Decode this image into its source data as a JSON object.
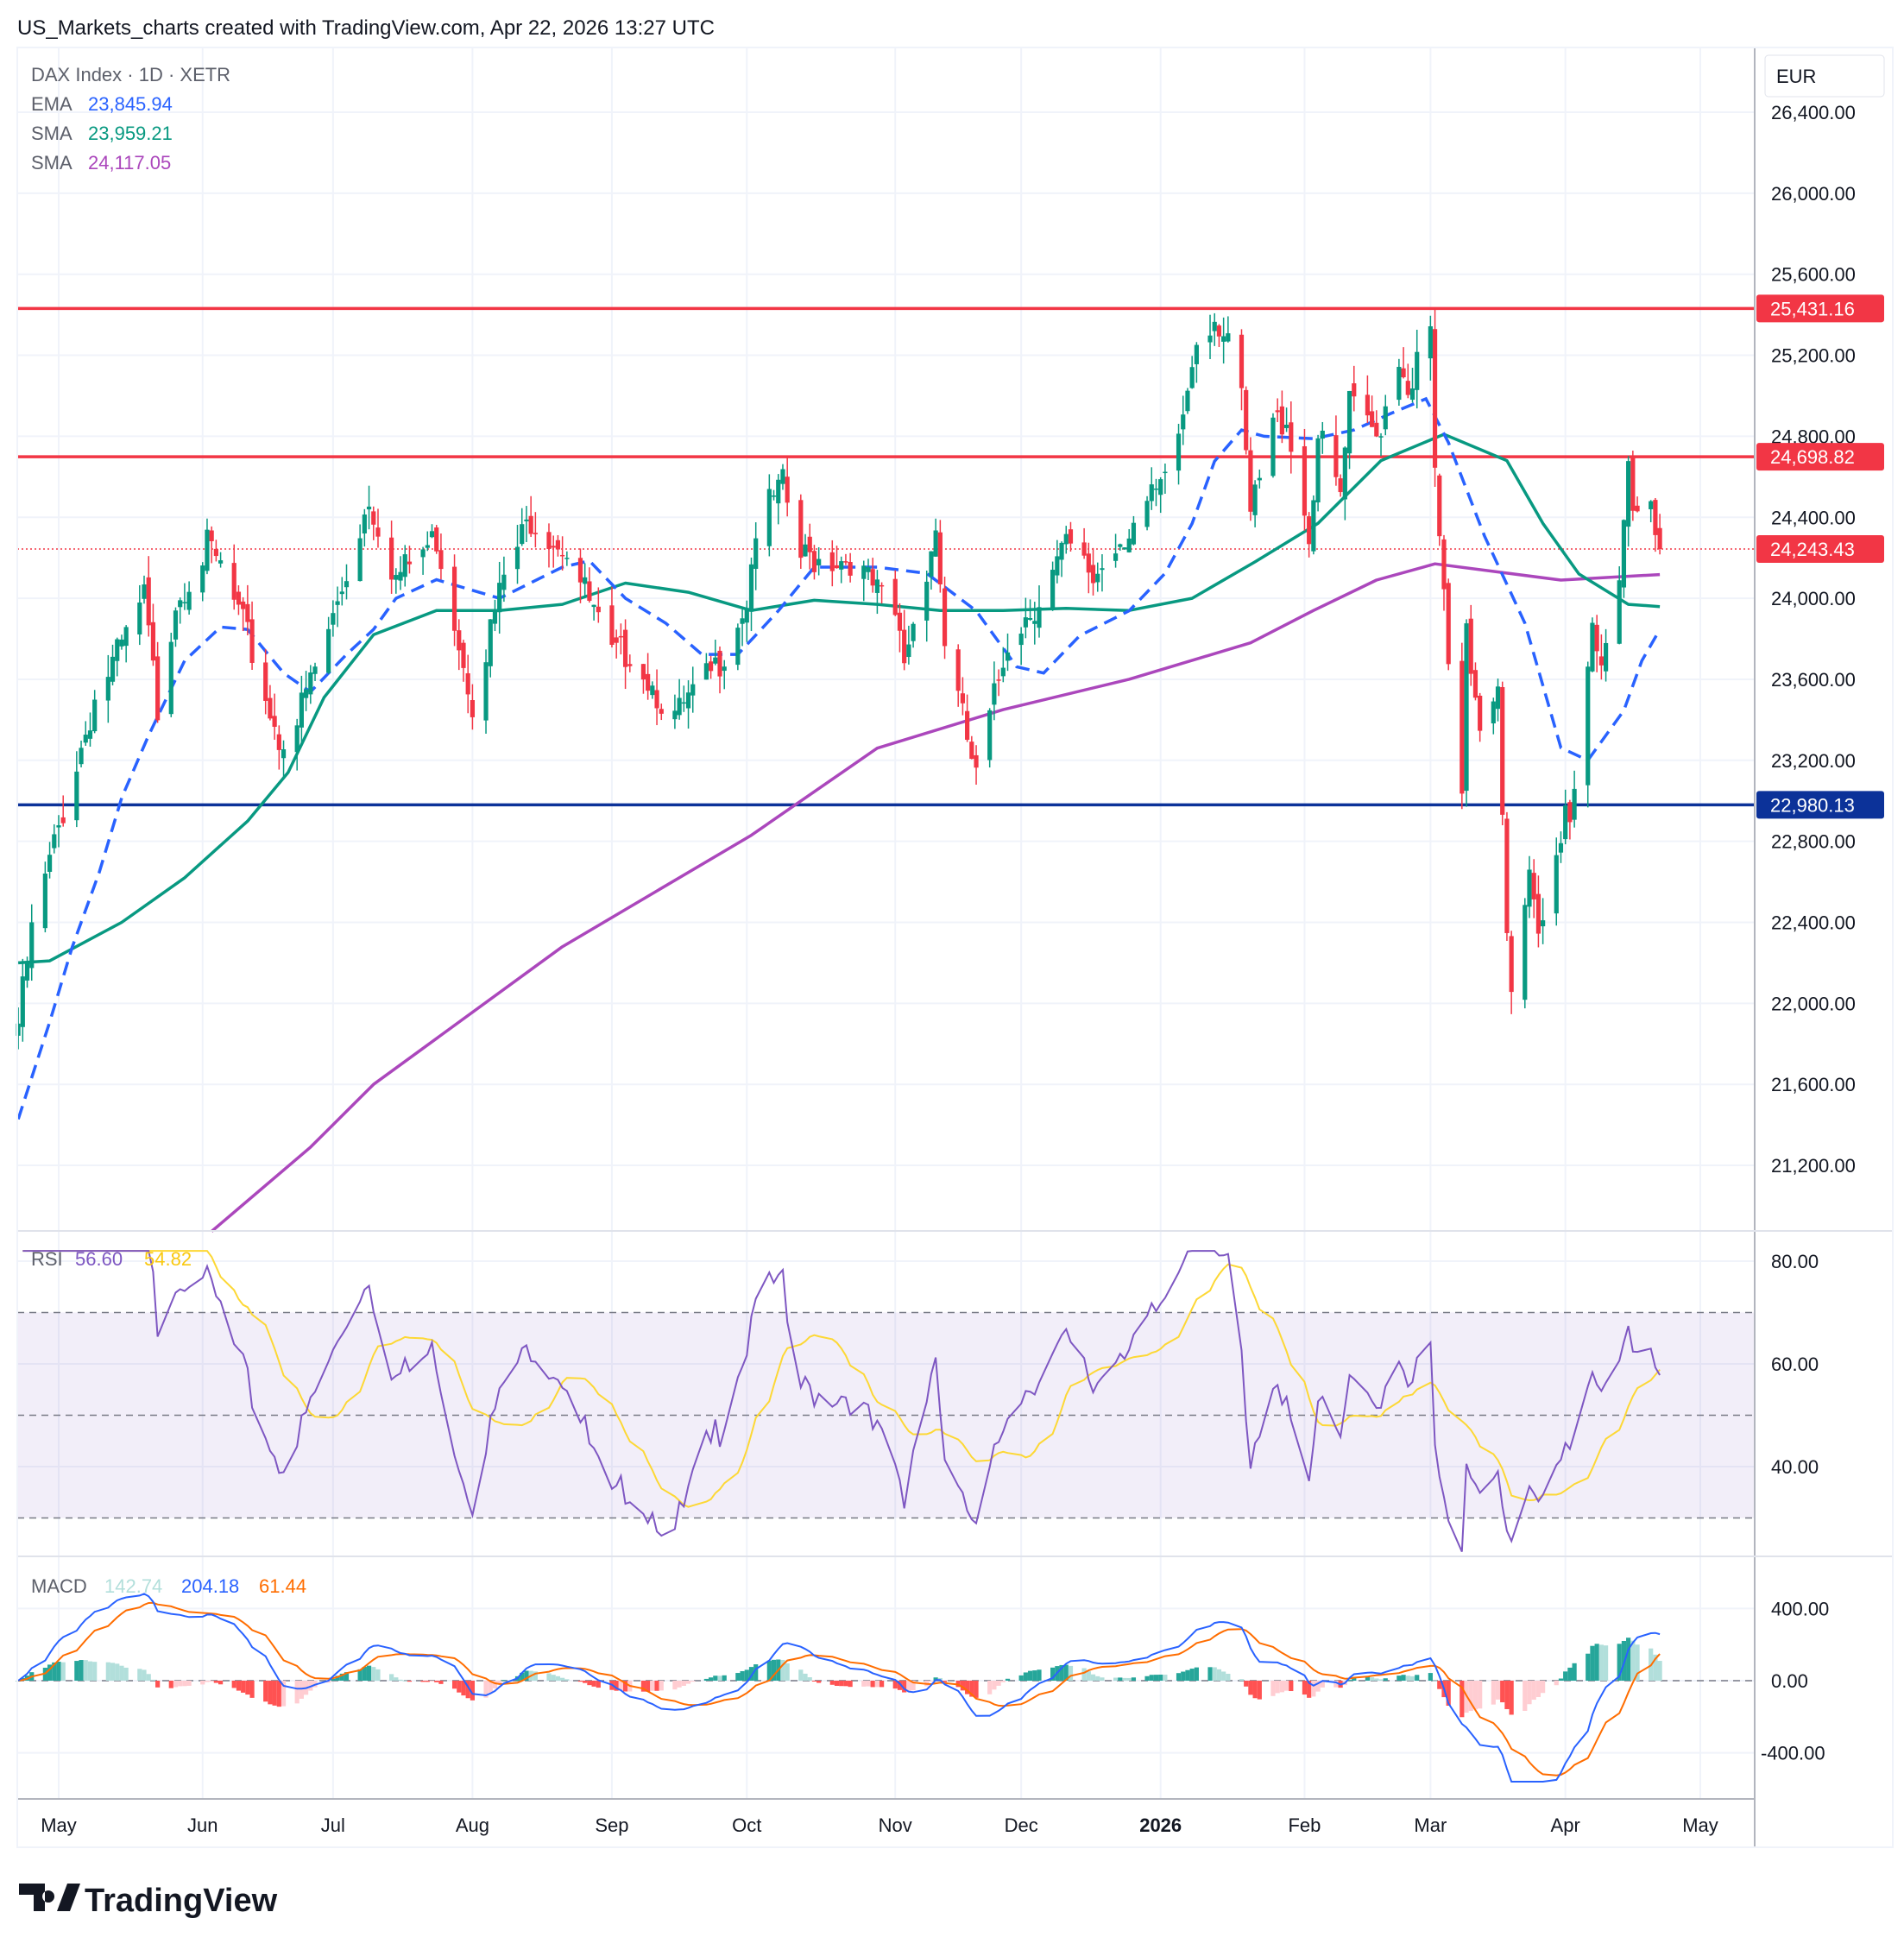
{
  "header": {
    "caption": "US_Markets_charts created with TradingView.com, Apr 22, 2026 13:27 UTC"
  },
  "legend": {
    "symbol": "DAX Index · 1D · XETR",
    "ema_label": "EMA",
    "ema_value": "23,845.94",
    "sma1_label": "SMA",
    "sma1_value": "23,959.21",
    "sma2_label": "SMA",
    "sma2_value": "24,117.05",
    "rsi_label": "RSI",
    "rsi_value": "56.60",
    "rsi_ma_value": "54.82",
    "macd_label": "MACD",
    "macd_hist_value": "142.74",
    "macd_value": "204.18",
    "macd_signal_value": "61.44"
  },
  "currency": "EUR",
  "logo_text": "TradingView",
  "colors": {
    "up": "#089981",
    "down": "#f23645",
    "ema": "#2962ff",
    "sma50": "#089981",
    "sma200": "#ab47bc",
    "rsi": "#7e57c2",
    "rsi_ma": "#fdd835",
    "macd": "#2962ff",
    "signal": "#ff6d00",
    "level_red": "#f23645",
    "level_blue": "#0c3299"
  },
  "chart_data": {
    "type": "candlestick",
    "price_axis": {
      "min": 21200,
      "max": 26400,
      "ticks": [
        "26,400.00",
        "26,000.00",
        "25,600.00",
        "25,200.00",
        "24,800.00",
        "24,400.00",
        "24,000.00",
        "23,600.00",
        "23,200.00",
        "22,800.00",
        "22,400.00",
        "22,000.00",
        "21,600.00",
        "21,200.00"
      ],
      "tick_values": [
        26400,
        26000,
        25600,
        25200,
        24800,
        24400,
        24000,
        23600,
        23200,
        22800,
        22400,
        22000,
        21600,
        21200
      ]
    },
    "time_axis": [
      {
        "label": "May",
        "date": "2025-05-01"
      },
      {
        "label": "Jun",
        "date": "2025-06-02"
      },
      {
        "label": "Jul",
        "date": "2025-07-01"
      },
      {
        "label": "Aug",
        "date": "2025-08-01"
      },
      {
        "label": "Sep",
        "date": "2025-09-01"
      },
      {
        "label": "Oct",
        "date": "2025-10-01"
      },
      {
        "label": "Nov",
        "date": "2025-11-03"
      },
      {
        "label": "Dec",
        "date": "2025-12-01"
      },
      {
        "label": "2026",
        "date": "2026-01-01",
        "bold": true
      },
      {
        "label": "Feb",
        "date": "2026-02-02"
      },
      {
        "label": "Mar",
        "date": "2026-03-02"
      },
      {
        "label": "Apr",
        "date": "2026-04-01"
      },
      {
        "label": "May",
        "date": "2026-05-01"
      }
    ],
    "horizontal_levels": [
      {
        "value": 25431.16,
        "label": "25,431.16",
        "color": "#f23645"
      },
      {
        "value": 24698.82,
        "label": "24,698.82",
        "color": "#f23645"
      },
      {
        "value": 22980.13,
        "label": "22,980.13",
        "color": "#0c3299"
      }
    ],
    "last_price": {
      "value": 24243.43,
      "label": "24,243.43"
    },
    "close_keypoints": [
      [
        "2025-04-22",
        21900
      ],
      [
        "2025-04-25",
        22350
      ],
      [
        "2025-05-02",
        22950
      ],
      [
        "2025-05-09",
        23500
      ],
      [
        "2025-05-16",
        23800
      ],
      [
        "2025-05-20",
        24000
      ],
      [
        "2025-05-23",
        23450
      ],
      [
        "2025-05-27",
        24000
      ],
      [
        "2025-06-03",
        24250
      ],
      [
        "2025-06-06",
        24150
      ],
      [
        "2025-06-12",
        23800
      ],
      [
        "2025-06-19",
        23300
      ],
      [
        "2025-06-23",
        23400
      ],
      [
        "2025-07-01",
        23900
      ],
      [
        "2025-07-09",
        24500
      ],
      [
        "2025-07-15",
        24100
      ],
      [
        "2025-07-24",
        24300
      ],
      [
        "2025-08-01",
        23500
      ],
      [
        "2025-08-08",
        24100
      ],
      [
        "2025-08-14",
        24400
      ],
      [
        "2025-08-22",
        24250
      ],
      [
        "2025-09-01",
        23700
      ],
      [
        "2025-09-05",
        23750
      ],
      [
        "2025-09-15",
        23400
      ],
      [
        "2025-09-24",
        23650
      ],
      [
        "2025-10-01",
        24000
      ],
      [
        "2025-10-03",
        24350
      ],
      [
        "2025-10-09",
        24550
      ],
      [
        "2025-10-13",
        24200
      ],
      [
        "2025-10-24",
        24200
      ],
      [
        "2025-11-03",
        23900
      ],
      [
        "2025-11-05",
        23700
      ],
      [
        "2025-11-12",
        24350
      ],
      [
        "2025-11-14",
        23800
      ],
      [
        "2025-11-20",
        23200
      ],
      [
        "2025-11-21",
        23100
      ],
      [
        "2025-11-25",
        23500
      ],
      [
        "2025-11-28",
        23800
      ],
      [
        "2025-12-05",
        24000
      ],
      [
        "2025-12-11",
        24250
      ],
      [
        "2025-12-17",
        24100
      ],
      [
        "2025-12-23",
        24300
      ],
      [
        "2026-01-02",
        24550
      ],
      [
        "2026-01-06",
        24900
      ],
      [
        "2026-01-09",
        25300
      ],
      [
        "2026-01-13",
        25400
      ],
      [
        "2026-01-16",
        25300
      ],
      [
        "2026-01-19",
        24950
      ],
      [
        "2026-01-21",
        24400
      ],
      [
        "2026-01-26",
        24850
      ],
      [
        "2026-01-29",
        24900
      ],
      [
        "2026-02-03",
        24300
      ],
      [
        "2026-02-05",
        24800
      ],
      [
        "2026-02-10",
        24500
      ],
      [
        "2026-02-12",
        24950
      ],
      [
        "2026-02-18",
        24800
      ],
      [
        "2026-02-23",
        25200
      ],
      [
        "2026-02-25",
        25050
      ],
      [
        "2026-03-02",
        25300
      ],
      [
        "2026-03-03",
        24600
      ],
      [
        "2026-03-05",
        24000
      ],
      [
        "2026-03-06",
        23600
      ],
      [
        "2026-03-09",
        23000
      ],
      [
        "2026-03-10",
        23800
      ],
      [
        "2026-03-13",
        23400
      ],
      [
        "2026-03-17",
        23600
      ],
      [
        "2026-03-18",
        23000
      ],
      [
        "2026-03-19",
        22400
      ],
      [
        "2026-03-20",
        22000
      ],
      [
        "2026-03-24",
        22600
      ],
      [
        "2026-03-26",
        22300
      ],
      [
        "2026-03-30",
        22700
      ],
      [
        "2026-04-01",
        23000
      ],
      [
        "2026-04-02",
        22900
      ],
      [
        "2026-04-07",
        23900
      ],
      [
        "2026-04-09",
        23700
      ],
      [
        "2026-04-13",
        24000
      ],
      [
        "2026-04-15",
        24600
      ],
      [
        "2026-04-16",
        24400
      ],
      [
        "2026-04-20",
        24450
      ],
      [
        "2026-04-22",
        24243.43
      ]
    ],
    "ema_keypoints": [
      [
        "2025-04-22",
        21428
      ],
      [
        "2025-04-29",
        21908
      ],
      [
        "2025-05-04",
        22277
      ],
      [
        "2025-05-10",
        22646
      ],
      [
        "2025-05-15",
        23015
      ],
      [
        "2025-05-21",
        23323
      ],
      [
        "2025-05-29",
        23692
      ],
      [
        "2025-06-06",
        23858
      ],
      [
        "2025-06-12",
        23846
      ],
      [
        "2025-06-20",
        23631
      ],
      [
        "2025-06-26",
        23538
      ],
      [
        "2025-07-04",
        23723
      ],
      [
        "2025-07-10",
        23846
      ],
      [
        "2025-07-15",
        24000
      ],
      [
        "2025-07-24",
        24092
      ],
      [
        "2025-08-07",
        24000
      ],
      [
        "2025-08-21",
        24154
      ],
      [
        "2025-08-27",
        24185
      ],
      [
        "2025-09-04",
        24000
      ],
      [
        "2025-09-13",
        23877
      ],
      [
        "2025-09-21",
        23723
      ],
      [
        "2025-09-29",
        23723
      ],
      [
        "2025-10-08",
        23938
      ],
      [
        "2025-10-16",
        24154
      ],
      [
        "2025-10-30",
        24154
      ],
      [
        "2025-11-10",
        24123
      ],
      [
        "2025-11-21",
        23938
      ],
      [
        "2025-11-30",
        23662
      ],
      [
        "2025-12-06",
        23631
      ],
      [
        "2025-12-14",
        23815
      ],
      [
        "2025-12-25",
        23938
      ],
      [
        "2026-01-02",
        24123
      ],
      [
        "2026-01-08",
        24369
      ],
      [
        "2026-01-13",
        24677
      ],
      [
        "2026-01-19",
        24831
      ],
      [
        "2026-01-24",
        24800
      ],
      [
        "2026-02-04",
        24788
      ],
      [
        "2026-02-13",
        24831
      ],
      [
        "2026-02-21",
        24911
      ],
      [
        "2026-03-01",
        24985
      ],
      [
        "2026-03-06",
        24769
      ],
      [
        "2026-03-14",
        24308
      ],
      [
        "2026-03-23",
        23877
      ],
      [
        "2026-03-31",
        23262
      ],
      [
        "2026-04-06",
        23200
      ],
      [
        "2026-04-14",
        23446
      ],
      [
        "2026-04-18",
        23692
      ],
      [
        "2026-04-22",
        23845.94
      ]
    ],
    "sma50_keypoints": [
      [
        "2025-04-22",
        22200
      ],
      [
        "2025-04-29",
        22210
      ],
      [
        "2025-05-15",
        22400
      ],
      [
        "2025-05-29",
        22620
      ],
      [
        "2025-06-12",
        22900
      ],
      [
        "2025-06-21",
        23140
      ],
      [
        "2025-06-29",
        23510
      ],
      [
        "2025-07-10",
        23820
      ],
      [
        "2025-07-24",
        23940
      ],
      [
        "2025-08-07",
        23940
      ],
      [
        "2025-08-21",
        23970
      ],
      [
        "2025-09-04",
        24075
      ],
      [
        "2025-09-18",
        24030
      ],
      [
        "2025-10-02",
        23940
      ],
      [
        "2025-10-16",
        23990
      ],
      [
        "2025-10-30",
        23970
      ],
      [
        "2025-11-13",
        23940
      ],
      [
        "2025-11-27",
        23940
      ],
      [
        "2025-12-11",
        23950
      ],
      [
        "2025-12-25",
        23940
      ],
      [
        "2026-01-08",
        24000
      ],
      [
        "2026-01-22",
        24180
      ],
      [
        "2026-02-05",
        24370
      ],
      [
        "2026-02-19",
        24680
      ],
      [
        "2026-03-05",
        24810
      ],
      [
        "2026-03-19",
        24680
      ],
      [
        "2026-03-27",
        24370
      ],
      [
        "2026-04-04",
        24120
      ],
      [
        "2026-04-15",
        23970
      ],
      [
        "2026-04-22",
        23959.21
      ]
    ],
    "sma200_keypoints": [
      [
        "2025-06-04",
        20874
      ],
      [
        "2025-06-26",
        21290
      ],
      [
        "2025-07-10",
        21600
      ],
      [
        "2025-08-21",
        22280
      ],
      [
        "2025-10-02",
        22830
      ],
      [
        "2025-10-30",
        23260
      ],
      [
        "2025-11-27",
        23450
      ],
      [
        "2025-12-25",
        23600
      ],
      [
        "2026-01-21",
        23780
      ],
      [
        "2026-02-04",
        23940
      ],
      [
        "2026-02-18",
        24090
      ],
      [
        "2026-03-03",
        24170
      ],
      [
        "2026-03-31",
        24090
      ],
      [
        "2026-04-22",
        24117.05
      ]
    ],
    "rsi": {
      "period": 14,
      "ma_period": 14,
      "upper": 70,
      "middle": 50,
      "lower": 30,
      "ticks": [
        "80.00",
        "60.00",
        "40.00"
      ],
      "tick_values": [
        80,
        60,
        40
      ]
    },
    "macd": {
      "fast": 12,
      "slow": 26,
      "signal": 9,
      "ticks": [
        "400.00",
        "0.00",
        "-400.00"
      ],
      "tick_values": [
        400,
        0,
        -400
      ]
    }
  }
}
